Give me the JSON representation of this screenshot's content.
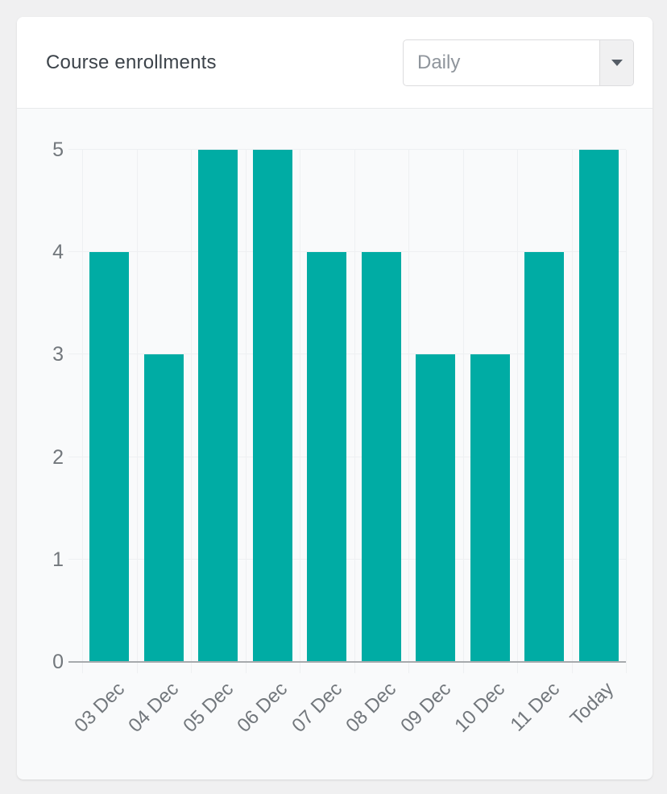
{
  "header": {
    "title": "Course enrollments",
    "period_dropdown": {
      "value": "Daily",
      "icon": "chevron-down"
    }
  },
  "chart_data": {
    "type": "bar",
    "title": "Course enrollments",
    "categories": [
      "03 Dec",
      "04 Dec",
      "05 Dec",
      "06 Dec",
      "07 Dec",
      "08 Dec",
      "09 Dec",
      "10 Dec",
      "11 Dec",
      "Today"
    ],
    "values": [
      4,
      3,
      5,
      5,
      4,
      4,
      3,
      3,
      4,
      5
    ],
    "xlabel": "",
    "ylabel": "",
    "ylim": [
      0,
      5
    ],
    "yticks": [
      0,
      1,
      2,
      3,
      4,
      5
    ],
    "grid": true,
    "legend": false,
    "bar_color": "#00ACA4",
    "x_tick_rotation_deg": -45
  },
  "colors": {
    "bar": "#00ACA4",
    "grid_line": "#eef0f2",
    "axis_line": "#a7aaad",
    "tick_label": "#72777c",
    "title_text": "#3c434a",
    "dropdown_text": "#8f959c",
    "card_header_bg": "#ffffff",
    "card_body_bg": "#f9fafb",
    "page_bg": "#f0f0f1"
  }
}
